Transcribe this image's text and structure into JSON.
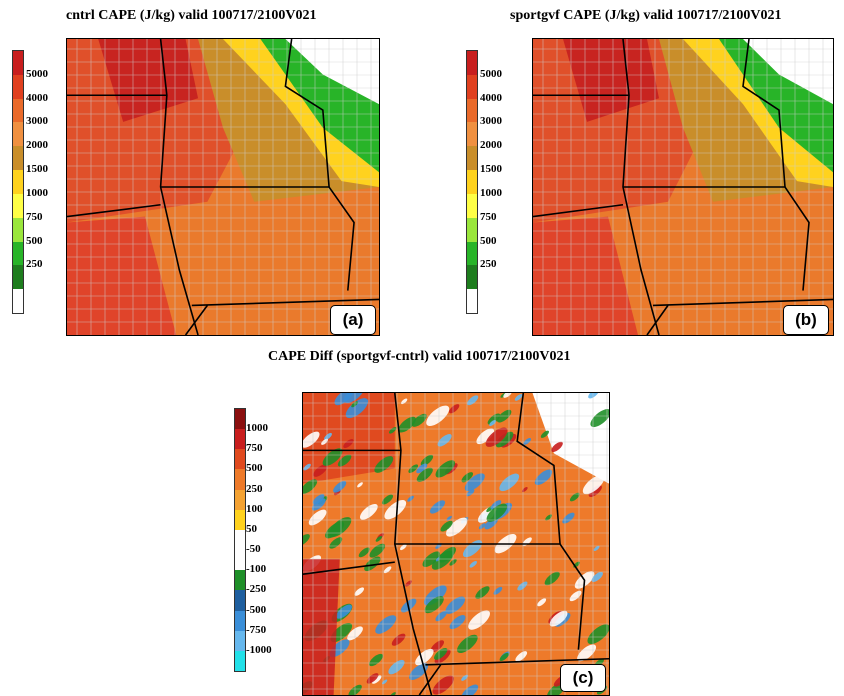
{
  "panels": [
    {
      "id": "a",
      "title": "cntrl CAPE (J/kg) valid 100717/2100V021",
      "badge": "(a)",
      "colorbar_labels": [
        "5000",
        "4000",
        "3000",
        "2000",
        "1500",
        "1000",
        "750",
        "500",
        "250"
      ],
      "colorbar_colors": [
        "#c81e1e",
        "#e0401f",
        "#ea6a2a",
        "#f09040",
        "#c98e2a",
        "#ffd21e",
        "#ffff46",
        "#9ae63c",
        "#28b428",
        "#1e7d1e",
        "#ffffff"
      ]
    },
    {
      "id": "b",
      "title": "sportgvf CAPE (J/kg) valid 100717/2100V021",
      "badge": "(b)",
      "colorbar_labels": [
        "5000",
        "4000",
        "3000",
        "2000",
        "1500",
        "1000",
        "750",
        "500",
        "250"
      ],
      "colorbar_colors": [
        "#c81e1e",
        "#e0401f",
        "#ea6a2a",
        "#f09040",
        "#c98e2a",
        "#ffd21e",
        "#ffff46",
        "#9ae63c",
        "#28b428",
        "#1e7d1e",
        "#ffffff"
      ]
    },
    {
      "id": "c",
      "title": "CAPE Diff (sportgvf-cntrl) valid 100717/2100V021",
      "badge": "(c)",
      "colorbar_labels": [
        "1000",
        "750",
        "500",
        "250",
        "100",
        "50",
        "-50",
        "-100",
        "-250",
        "-500",
        "-750",
        "-1000"
      ],
      "colorbar_colors": [
        "#8b1010",
        "#c81e1e",
        "#e04a1f",
        "#ee7a2a",
        "#f4a232",
        "#ffd21e",
        "#ffffff",
        "#ffffff",
        "#1f8f28",
        "#1f5f9f",
        "#3a8ed8",
        "#66b8ee",
        "#22e0e8"
      ]
    }
  ]
}
